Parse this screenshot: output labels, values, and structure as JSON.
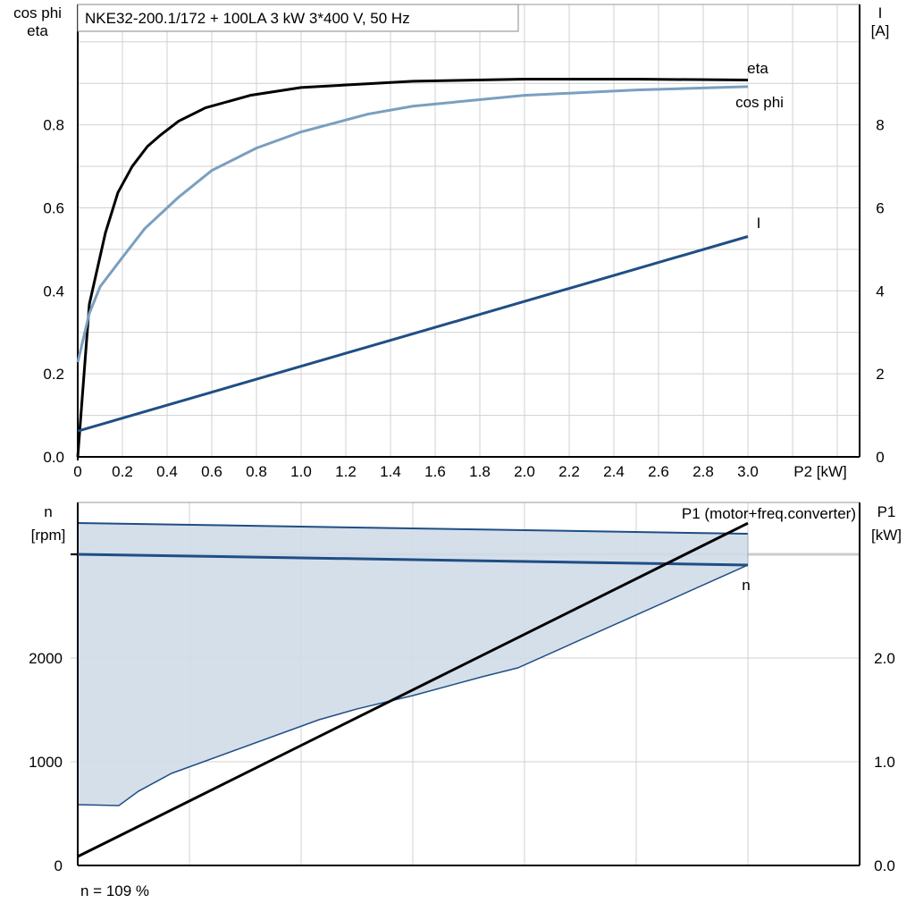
{
  "chart_data": [
    {
      "type": "line",
      "title": "NKE32-200.1/172 + 100LA   3 kW   3*400 V, 50 Hz",
      "xlabel": "P2 [kW]",
      "ylabel_left": [
        "cos phi",
        "eta"
      ],
      "ylabel_right": [
        "I",
        "[A]"
      ],
      "xlim": [
        0,
        3.4
      ],
      "ylim_left": [
        0,
        1.09
      ],
      "ylim_right": [
        0,
        10.9
      ],
      "x_ticks": [
        "0",
        "0.2",
        "0.4",
        "0.6",
        "0.8",
        "1.0",
        "1.2",
        "1.4",
        "1.6",
        "1.8",
        "2.0",
        "2.2",
        "2.4",
        "2.6",
        "2.8",
        "3.0"
      ],
      "y_ticks_left": [
        "0.0",
        "0.2",
        "0.4",
        "0.6",
        "0.8"
      ],
      "y_ticks_right": [
        "0",
        "2",
        "4",
        "6",
        "8"
      ],
      "grid": true,
      "series": [
        {
          "name": "eta",
          "axis": "left",
          "color": "#000000",
          "x": [
            0,
            0.052,
            0.124,
            0.18,
            0.244,
            0.312,
            0.372,
            0.452,
            0.572,
            0.772,
            1.0,
            1.5,
            2.0,
            2.5,
            3.0
          ],
          "y": [
            0,
            0.368,
            0.54,
            0.637,
            0.7,
            0.748,
            0.776,
            0.809,
            0.841,
            0.871,
            0.89,
            0.905,
            0.91,
            0.91,
            0.908
          ]
        },
        {
          "name": "cos phi",
          "axis": "left",
          "color": "#7a9fc0",
          "x": [
            0,
            0.052,
            0.1,
            0.192,
            0.3,
            0.452,
            0.6,
            0.8,
            1.0,
            1.3,
            1.5,
            2.0,
            2.5,
            3.0
          ],
          "y": [
            0.228,
            0.346,
            0.41,
            0.475,
            0.55,
            0.626,
            0.69,
            0.744,
            0.783,
            0.826,
            0.845,
            0.871,
            0.884,
            0.892
          ]
        },
        {
          "name": "I",
          "axis": "right",
          "color": "#1f4e85",
          "x": [
            0,
            3.0
          ],
          "y": [
            0.62,
            5.31
          ]
        }
      ]
    },
    {
      "type": "line",
      "xlim": [
        0,
        3.4
      ],
      "ylabel_left": [
        "n",
        "[rpm]"
      ],
      "ylabel_right": [
        "P1",
        "[kW]"
      ],
      "ylim_left": [
        0,
        3500
      ],
      "ylim_right": [
        0,
        3.5
      ],
      "y_ticks_left": [
        "0",
        "1000",
        "2000"
      ],
      "y_ticks_right": [
        "0.0",
        "1.0",
        "2.0"
      ],
      "grid": true,
      "band": {
        "color": "#d0dce8",
        "edge_color": "#1f4e85",
        "upper": {
          "x": [
            0,
            3.0
          ],
          "y": [
            3302,
            3198
          ]
        },
        "lower": {
          "x": [
            0,
            0.184,
            0.272,
            0.42,
            1.08,
            1.25,
            1.5,
            1.81,
            1.97,
            3.0
          ],
          "y": [
            586,
            578,
            716,
            888,
            1405,
            1509,
            1638,
            1819,
            1905,
            2897
          ]
        }
      },
      "series": [
        {
          "name": "n",
          "axis": "left",
          "color": "#1f4e85",
          "x": [
            0,
            3.0
          ],
          "y": [
            3000,
            2897
          ]
        },
        {
          "name": "P1 (motor+freq.converter)",
          "axis": "right",
          "color": "#000000",
          "x": [
            0,
            3.0
          ],
          "y": [
            0.086,
            3.3
          ]
        }
      ],
      "annotation": "n = 109 %"
    }
  ]
}
